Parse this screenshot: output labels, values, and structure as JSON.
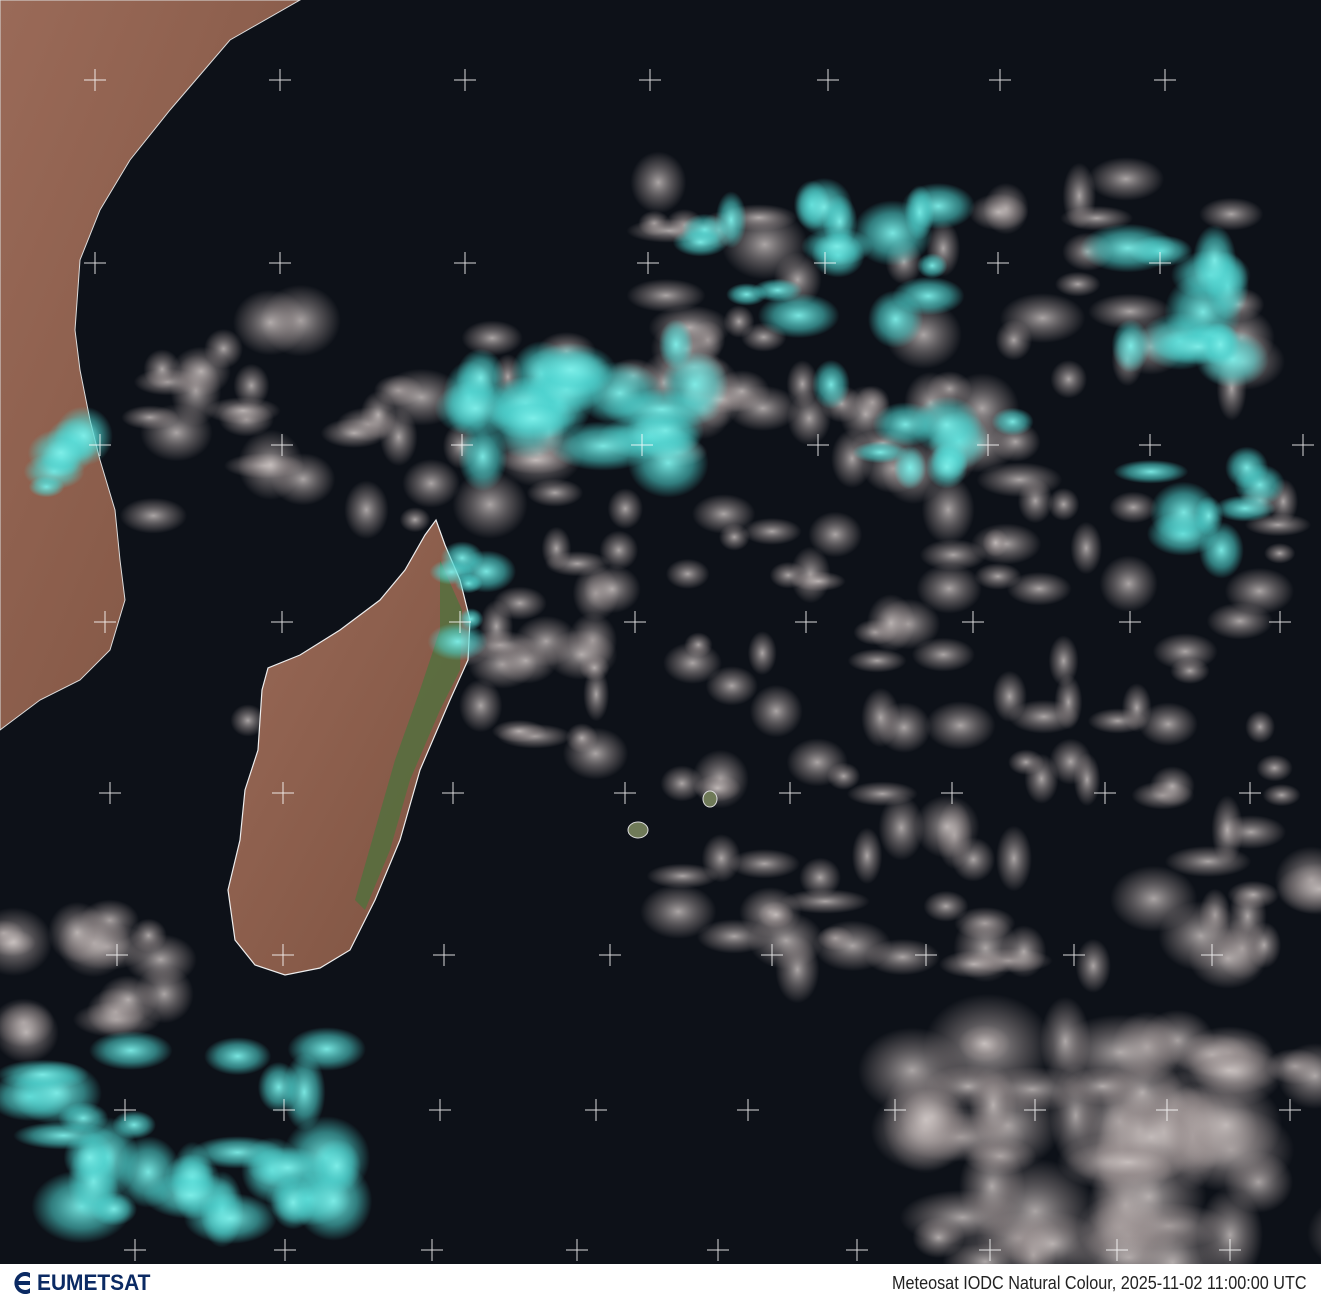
{
  "footer": {
    "logo_text": "EUMETSAT",
    "caption": "Meteosat IODC Natural Colour, 2025-11-02 11:00:00 UTC"
  },
  "colors": {
    "ocean": "#0d1118",
    "land": "#8a5a45",
    "vegetation": "#4e6a3a",
    "ice_cloud": "#5fe5e0",
    "water_cloud": "#c8c0c0",
    "grid": "#ffffff",
    "logo": "#0b2a63"
  },
  "icons": {
    "logo": "eumetsat-logo-icon"
  }
}
